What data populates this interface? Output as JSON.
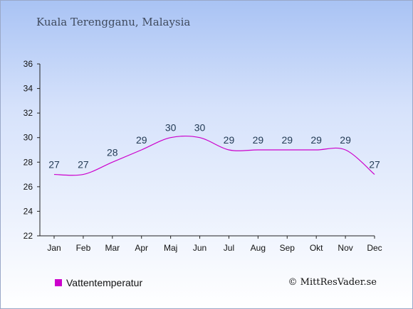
{
  "header": {
    "title": "Kuala Terengganu, Malaysia"
  },
  "chart_data": {
    "type": "line",
    "title": "Kuala Terengganu, Malaysia",
    "categories": [
      "Jan",
      "Feb",
      "Mar",
      "Apr",
      "Maj",
      "Jun",
      "Jul",
      "Aug",
      "Sep",
      "Okt",
      "Nov",
      "Dec"
    ],
    "series": [
      {
        "name": "Vattentemperatur",
        "values": [
          27,
          27,
          28,
          29,
          30,
          30,
          29,
          29,
          29,
          29,
          29,
          27
        ],
        "color": "#cc00cc"
      }
    ],
    "ylim": [
      22,
      36
    ],
    "yticks": [
      22,
      24,
      26,
      28,
      30,
      32,
      34,
      36
    ],
    "xlabel": "",
    "ylabel": "",
    "grid": false,
    "legend": "bottom-left"
  },
  "legend": {
    "label": "Vattentemperatur",
    "color": "#cc00cc"
  },
  "footer": {
    "copyright": "© MittResVader.se"
  }
}
